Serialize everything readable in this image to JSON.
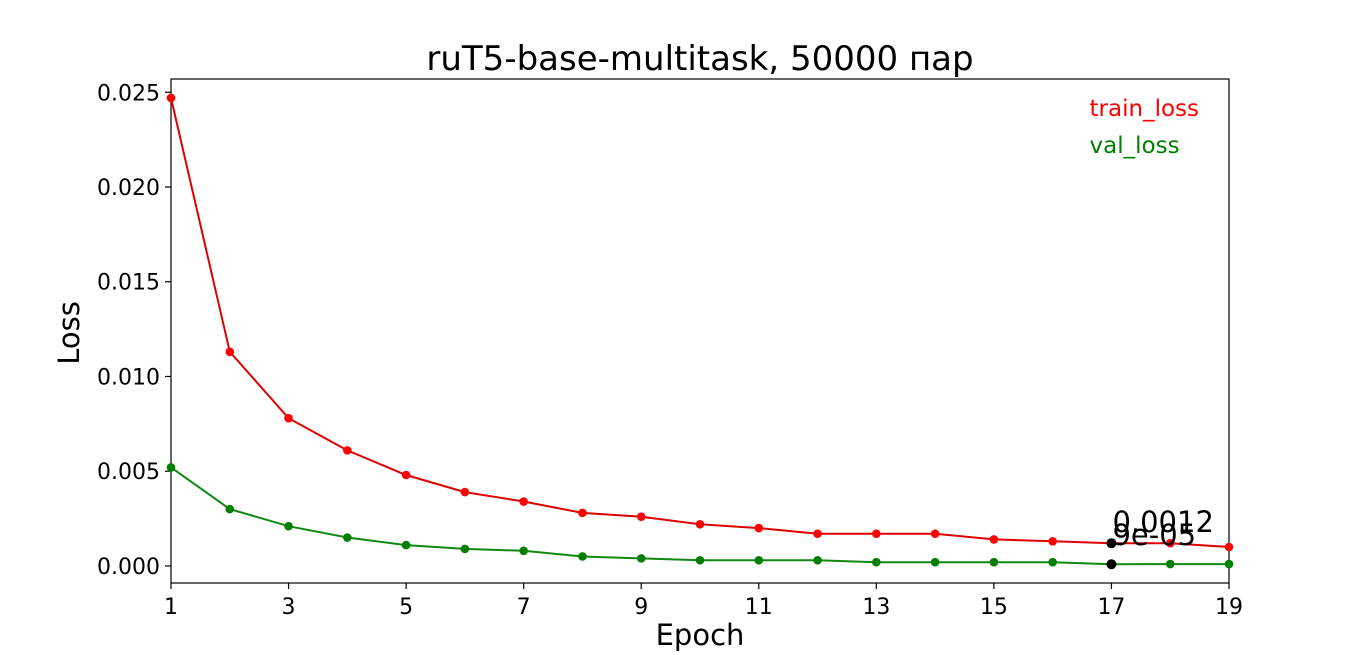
{
  "chart_data": {
    "type": "line",
    "title": "ruT5-base-multitask, 50000 пар",
    "xlabel": "Epoch",
    "ylabel": "Loss",
    "xlim": [
      1,
      19
    ],
    "ylim": [
      -0.0009,
      0.0257
    ],
    "xticks": [
      1,
      3,
      5,
      7,
      9,
      11,
      13,
      15,
      17,
      19
    ],
    "yticks": [
      0.0,
      0.005,
      0.01,
      0.015,
      0.02,
      0.025
    ],
    "ytick_labels": [
      "0.000",
      "0.005",
      "0.010",
      "0.015",
      "0.020",
      "0.025"
    ],
    "grid": false,
    "legend_position": "top-right",
    "x": [
      1,
      2,
      3,
      4,
      5,
      6,
      7,
      8,
      9,
      10,
      11,
      12,
      13,
      14,
      15,
      16,
      17,
      18,
      19
    ],
    "series": [
      {
        "name": "train_loss",
        "color": "#e00000",
        "marker_color": "#ff0000",
        "values": [
          0.0247,
          0.0113,
          0.0078,
          0.0061,
          0.0048,
          0.0039,
          0.0034,
          0.0028,
          0.0026,
          0.0022,
          0.002,
          0.0017,
          0.0017,
          0.0017,
          0.0014,
          0.0013,
          0.0012,
          0.0012,
          0.001
        ]
      },
      {
        "name": "val_loss",
        "color": "#118811",
        "marker_color": "#008000",
        "values": [
          0.0052,
          0.003,
          0.0021,
          0.0015,
          0.0011,
          0.0009,
          0.0008,
          0.0005,
          0.0004,
          0.0003,
          0.0003,
          0.0003,
          0.0002,
          0.0002,
          0.0002,
          0.0002,
          9e-05,
          0.0001,
          0.0001
        ]
      }
    ],
    "annotations": [
      {
        "text": "0.0012",
        "x": 17,
        "y": 0.0012
      },
      {
        "text": "9e-05",
        "x": 17,
        "y": 9e-05
      }
    ]
  }
}
